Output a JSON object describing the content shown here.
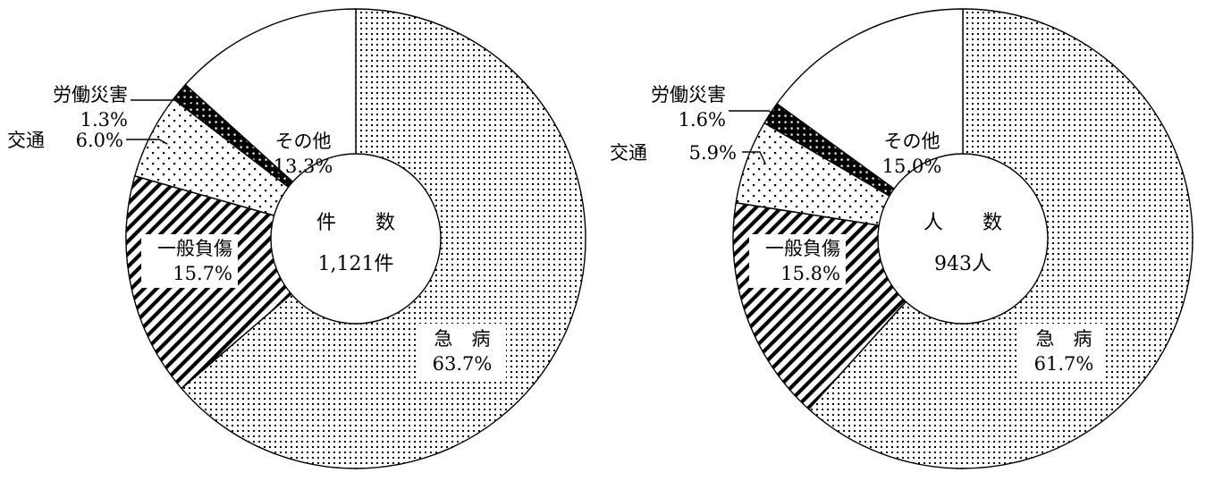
{
  "chart_data": [
    {
      "type": "pie",
      "variant": "donut",
      "center_label": "件　　数",
      "center_value": "1,121件",
      "slices": [
        {
          "label": "急　病",
          "value": 63.7,
          "value_text": "63.7%",
          "pattern": "dots-dense"
        },
        {
          "label": "一般負傷",
          "value": 15.7,
          "value_text": "15.7%",
          "pattern": "diagonal-hatch"
        },
        {
          "label": "交通",
          "value": 6.0,
          "value_text": "6.0%",
          "pattern": "dots-sparse"
        },
        {
          "label": "労働災害",
          "value": 1.3,
          "value_text": "1.3%",
          "pattern": "black-dots"
        },
        {
          "label": "その他",
          "value": 13.3,
          "value_text": "13.3%",
          "pattern": "none"
        }
      ]
    },
    {
      "type": "pie",
      "variant": "donut",
      "center_label": "人　　数",
      "center_value": "943人",
      "slices": [
        {
          "label": "急　病",
          "value": 61.7,
          "value_text": "61.7%",
          "pattern": "dots-dense"
        },
        {
          "label": "一般負傷",
          "value": 15.8,
          "value_text": "15.8%",
          "pattern": "diagonal-hatch"
        },
        {
          "label": "交通",
          "value": 5.9,
          "value_text": "5.9%",
          "pattern": "dots-sparse"
        },
        {
          "label": "労働災害",
          "value": 1.6,
          "value_text": "1.6%",
          "pattern": "black-dots"
        },
        {
          "label": "その他",
          "value": 15.0,
          "value_text": "15.0%",
          "pattern": "none"
        }
      ]
    }
  ]
}
